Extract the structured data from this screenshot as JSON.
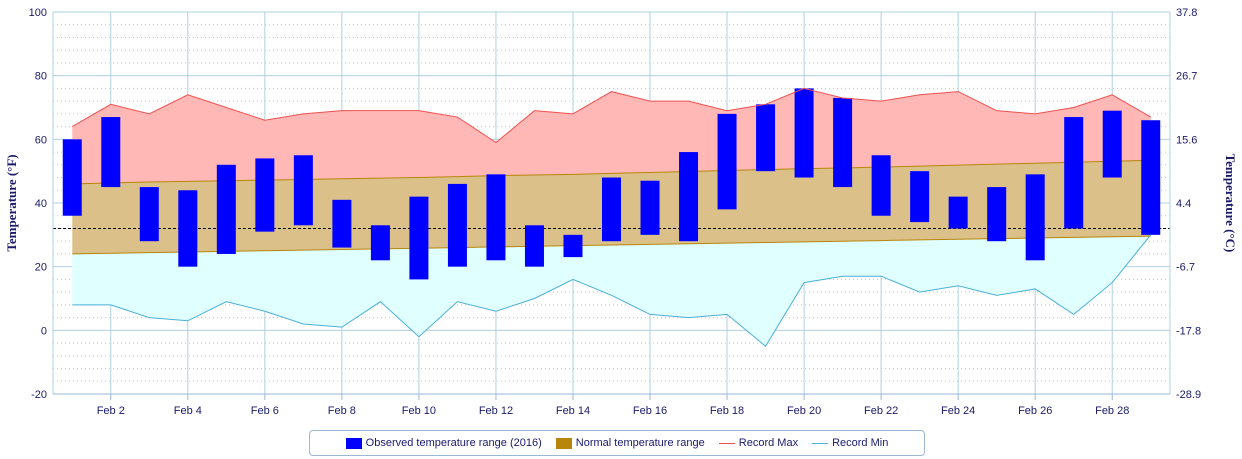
{
  "chart_data": {
    "type": "range-bar-area",
    "x": [
      1,
      2,
      3,
      4,
      5,
      6,
      7,
      8,
      9,
      10,
      11,
      12,
      13,
      14,
      15,
      16,
      17,
      18,
      19,
      20,
      21,
      22,
      23,
      24,
      25,
      26,
      27,
      28,
      29
    ],
    "x_tick_labels": [
      {
        "day": 2,
        "label": "Feb 2"
      },
      {
        "day": 4,
        "label": "Feb 4"
      },
      {
        "day": 6,
        "label": "Feb 6"
      },
      {
        "day": 8,
        "label": "Feb 8"
      },
      {
        "day": 10,
        "label": "Feb 10"
      },
      {
        "day": 12,
        "label": "Feb 12"
      },
      {
        "day": 14,
        "label": "Feb 14"
      },
      {
        "day": 16,
        "label": "Feb 16"
      },
      {
        "day": 18,
        "label": "Feb 18"
      },
      {
        "day": 20,
        "label": "Feb 20"
      },
      {
        "day": 22,
        "label": "Feb 22"
      },
      {
        "day": 24,
        "label": "Feb 24"
      },
      {
        "day": 26,
        "label": "Feb 26"
      },
      {
        "day": 28,
        "label": "Feb 28"
      }
    ],
    "xlim": [
      0.5,
      29.5
    ],
    "ylim": [
      -20,
      100
    ],
    "y_ticks": [
      -20,
      0,
      20,
      40,
      60,
      80,
      100
    ],
    "y2_tick_labels": [
      "-28.9",
      "-17.8",
      "-6.7",
      "4.4",
      "15.6",
      "26.7",
      "37.8"
    ],
    "ylabel": "Temperature (°F)",
    "y2label": "Temperature (°C)",
    "freezing_line": 32,
    "series": [
      {
        "name": "Observed temperature range (2016)",
        "kind": "range-bar",
        "color": "#0000ff",
        "low": [
          36,
          45,
          28,
          20,
          24,
          31,
          33,
          26,
          22,
          16,
          20,
          22,
          20,
          23,
          28,
          30,
          28,
          38,
          50,
          48,
          45,
          36,
          34,
          32,
          28,
          22,
          32,
          48,
          30
        ],
        "high": [
          60,
          67,
          45,
          44,
          52,
          54,
          55,
          41,
          33,
          42,
          46,
          49,
          33,
          30,
          48,
          47,
          56,
          68,
          71,
          76,
          73,
          55,
          50,
          42,
          45,
          49,
          67,
          69,
          66
        ]
      },
      {
        "name": "Normal temperature range",
        "kind": "range-area",
        "color": "#b8860b",
        "low": [
          24.0,
          24.2,
          24.4,
          24.6,
          24.8,
          25.0,
          25.2,
          25.4,
          25.6,
          25.8,
          26.0,
          26.2,
          26.4,
          26.6,
          26.8,
          27.0,
          27.2,
          27.4,
          27.6,
          27.8,
          28.0,
          28.2,
          28.4,
          28.6,
          28.8,
          29.0,
          29.2,
          29.4,
          29.6
        ],
        "high": [
          46.0,
          46.3,
          46.6,
          46.8,
          47.0,
          47.2,
          47.4,
          47.6,
          47.8,
          48.0,
          48.3,
          48.6,
          48.8,
          49.0,
          49.3,
          49.6,
          49.9,
          50.2,
          50.5,
          50.8,
          51.0,
          51.3,
          51.6,
          51.9,
          52.2,
          52.5,
          52.8,
          53.1,
          53.4
        ]
      },
      {
        "name": "Record Max",
        "kind": "line",
        "color": "#f05050",
        "values": [
          64,
          71,
          68,
          74,
          70,
          66,
          68,
          69,
          69,
          69,
          67,
          59,
          69,
          68,
          75,
          72,
          72,
          69,
          71,
          76,
          73,
          72,
          74,
          75,
          69,
          68,
          70,
          74,
          67
        ]
      },
      {
        "name": "Record Min",
        "kind": "line",
        "color": "#4ab0d8",
        "values": [
          8,
          8,
          4,
          3,
          9,
          6,
          2,
          1,
          9,
          -2,
          9,
          6,
          10,
          16,
          11,
          5,
          4,
          5,
          -5,
          15,
          17,
          17,
          12,
          14,
          11,
          13,
          5,
          15,
          30
        ]
      }
    ],
    "colors": {
      "record_max_fill": "#ffb8b5",
      "record_min_fill": "#e0ffff",
      "normal_fill": "#dcc08a",
      "grid": "#b0d0e0",
      "axis_text": "#1a1a6a"
    },
    "legend_position": "bottom-center",
    "grid": true
  }
}
